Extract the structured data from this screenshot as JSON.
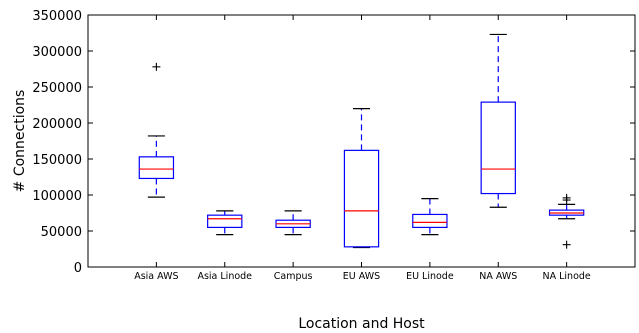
{
  "chart_data": {
    "type": "box",
    "xlabel": "Location and Host",
    "ylabel": "# Connections",
    "ylim": [
      0,
      350000
    ],
    "yticks": [
      0,
      50000,
      100000,
      150000,
      200000,
      250000,
      300000,
      350000
    ],
    "ytick_labels": [
      "0",
      "50000",
      "100000",
      "150000",
      "200000",
      "250000",
      "300000",
      "350000"
    ],
    "grid": false,
    "categories": [
      "Asia AWS",
      "Asia Linode",
      "Campus",
      "EU AWS",
      "EU Linode",
      "NA AWS",
      "NA Linode"
    ],
    "boxes": [
      {
        "whisker_low": 97000,
        "q1": 123000,
        "median": 136000,
        "q3": 153000,
        "whisker_high": 182000,
        "outliers": [
          278000
        ]
      },
      {
        "whisker_low": 45000,
        "q1": 55000,
        "median": 67000,
        "q3": 72000,
        "whisker_high": 78000,
        "outliers": []
      },
      {
        "whisker_low": 45000,
        "q1": 55000,
        "median": 60000,
        "q3": 65000,
        "whisker_high": 78000,
        "outliers": []
      },
      {
        "whisker_low": 27000,
        "q1": 28000,
        "median": 78000,
        "q3": 162000,
        "whisker_high": 220000,
        "outliers": []
      },
      {
        "whisker_low": 45000,
        "q1": 55000,
        "median": 62000,
        "q3": 73000,
        "whisker_high": 95000,
        "outliers": []
      },
      {
        "whisker_low": 83000,
        "q1": 102000,
        "median": 136000,
        "q3": 229000,
        "whisker_high": 323000,
        "outliers": []
      },
      {
        "whisker_low": 67000,
        "q1": 72000,
        "median": 75000,
        "q3": 79000,
        "whisker_high": 87000,
        "outliers": [
          96000,
          93000,
          31000
        ]
      }
    ],
    "colors": {
      "box": "#0000ff",
      "median": "#ff0000",
      "outlier": "#000000",
      "axis": "#000000"
    }
  }
}
